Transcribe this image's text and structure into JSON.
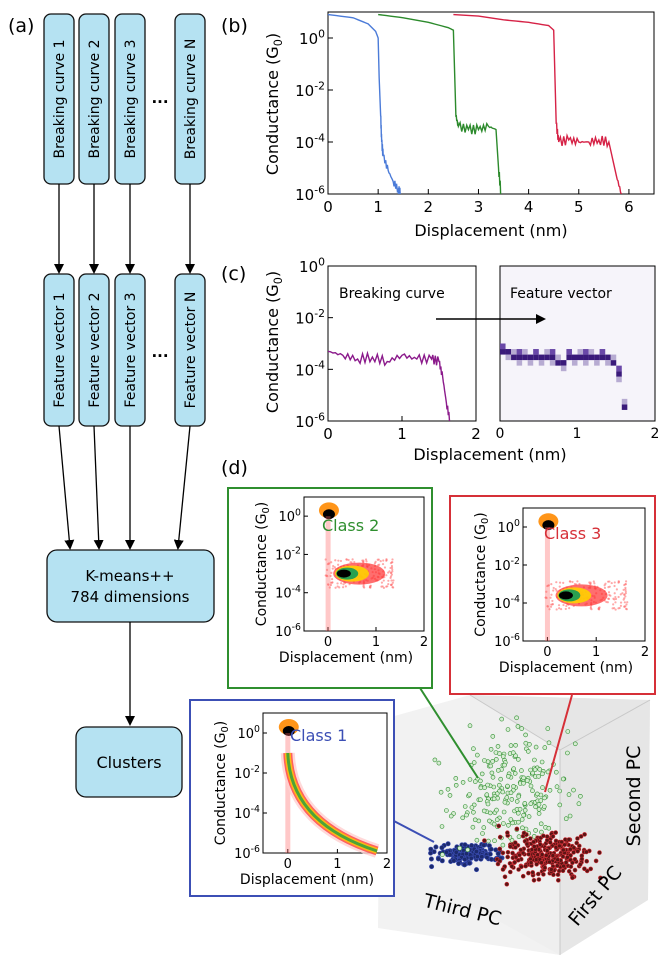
{
  "panel_labels": [
    "(a)",
    "(b)",
    "(c)",
    "(d)"
  ],
  "flow": {
    "breaking_curves": [
      "Breaking curve 1",
      "Breaking curve 2",
      "Breaking curve 3",
      "Breaking curve N"
    ],
    "feature_vectors": [
      "Feature vector 1",
      "Feature vector 2",
      "Feature vector 3",
      "Feature vector N"
    ],
    "ellipsis": "...",
    "kmeans_line1": "K-means++",
    "kmeans_line2": "784 dimensions",
    "clusters": "Clusters"
  },
  "axes_text": {
    "ylabel_b": "Conductance (G0)",
    "xlabel_b": "Displacement (nm)",
    "ylabel_c": "Conductance (G0)",
    "xlabel_c": "Displacement (nm)",
    "breaking_curve_label": "Breaking curve",
    "feature_vector_label": "Feature vector",
    "inset_ylabel": "Conductance (G0)",
    "inset_xlabel": "Displacement (nm)",
    "class1": "Class 1",
    "class2": "Class 2",
    "class3": "Class 3",
    "pc1": "First PC",
    "pc2": "Second PC",
    "pc3": "Third PC"
  },
  "colors": {
    "box_fill": "#b5e2f2",
    "curve_blue": "#4b7bd8",
    "curve_green": "#2c8a2c",
    "curve_red": "#d62246",
    "curve_purple": "#8b1a8b",
    "class1": "#3c4fb5",
    "class2": "#2f8f2f",
    "class3": "#d63038"
  },
  "chart_data": [
    {
      "type": "line",
      "panel": "(b)",
      "xlabel": "Displacement (nm)",
      "ylabel": "Conductance (G0)",
      "xlim": [
        0,
        6.5
      ],
      "ylim": [
        1e-06,
        10
      ],
      "yscale": "log",
      "xticks": [
        0,
        1,
        2,
        3,
        4,
        5,
        6
      ],
      "yticks": [
        "10^-6",
        "10^-4",
        "10^-2",
        "10^0"
      ],
      "series": [
        {
          "x": [
            0,
            0.5,
            0.8,
            0.95,
            1.0,
            1.02,
            1.05,
            1.07,
            1.1,
            1.2,
            1.3,
            1.4,
            1.45
          ],
          "y": [
            8,
            6,
            3.5,
            1.8,
            1.0,
            0.03,
            0.001,
            0.0001,
            3e-05,
            8e-06,
            3e-06,
            1.5e-06,
            1e-06
          ]
        },
        {
          "x": [
            1.0,
            1.5,
            2.0,
            2.4,
            2.5,
            2.55,
            2.6,
            2.8,
            3.0,
            3.2,
            3.35,
            3.4,
            3.45
          ],
          "y": [
            8,
            6,
            4,
            2.5,
            2.0,
            0.001,
            0.0004,
            0.0003,
            0.0003,
            0.0004,
            0.0003,
            1e-05,
            1e-06
          ]
        },
        {
          "x": [
            2.5,
            3.0,
            3.5,
            4.0,
            4.4,
            4.5,
            4.55,
            4.6,
            4.8,
            5.0,
            5.2,
            5.4,
            5.6,
            5.75,
            5.85
          ],
          "y": [
            8,
            7,
            5,
            4,
            3,
            2,
            0.0005,
            0.0001,
            0.00012,
            0.0001,
            0.0001,
            0.00012,
            0.0001,
            5e-06,
            1e-06
          ]
        }
      ]
    },
    {
      "type": "line",
      "panel": "(c)",
      "xlabel": "Displacement (nm)",
      "ylabel": "Conductance (G0)",
      "xlim": [
        0,
        2
      ],
      "ylim": [
        1e-06,
        1
      ],
      "yscale": "log",
      "xticks": [
        0,
        1,
        2
      ],
      "yticks": [
        "10^-6",
        "10^-4",
        "10^-2",
        "10^0"
      ],
      "series": [
        {
          "x": [
            0,
            0.2,
            0.4,
            0.6,
            0.8,
            1.0,
            1.2,
            1.4,
            1.5,
            1.55,
            1.6,
            1.65
          ],
          "y": [
            0.0005,
            0.00035,
            0.00025,
            0.0003,
            0.0002,
            0.00035,
            0.00025,
            0.00025,
            0.0002,
            5e-05,
            5e-06,
            1e-06
          ]
        }
      ]
    }
  ]
}
